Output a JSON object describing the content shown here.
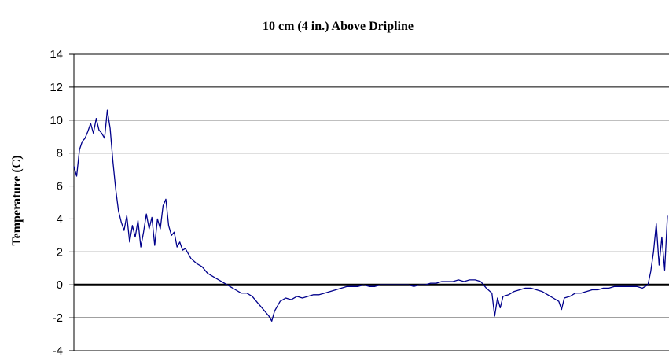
{
  "chart_data": {
    "type": "line",
    "title": "10 cm (4 in.) Above Dripline",
    "xlabel": "",
    "ylabel": "Temperature (C)",
    "ylim": [
      -4,
      14
    ],
    "yticks": [
      14,
      12,
      10,
      8,
      6,
      4,
      2,
      0,
      -2,
      -4
    ],
    "grid": true,
    "legend": "none",
    "line_color": "#00008b",
    "series": [
      {
        "values": [
          [
            0,
            7.2
          ],
          [
            0.5,
            6.6
          ],
          [
            1,
            8.2
          ],
          [
            1.5,
            8.7
          ],
          [
            2,
            8.9
          ],
          [
            2.5,
            9.3
          ],
          [
            3,
            9.8
          ],
          [
            3.5,
            9.2
          ],
          [
            4,
            10.1
          ],
          [
            4.5,
            9.4
          ],
          [
            5,
            9.2
          ],
          [
            5.5,
            8.9
          ],
          [
            6,
            10.6
          ],
          [
            6.5,
            9.5
          ],
          [
            7,
            7.5
          ],
          [
            7.5,
            5.8
          ],
          [
            8,
            4.5
          ],
          [
            8.5,
            3.8
          ],
          [
            9,
            3.3
          ],
          [
            9.5,
            4.2
          ],
          [
            10,
            2.6
          ],
          [
            10.5,
            3.6
          ],
          [
            11,
            2.9
          ],
          [
            11.5,
            3.9
          ],
          [
            12,
            2.3
          ],
          [
            12.5,
            3.2
          ],
          [
            13,
            4.3
          ],
          [
            13.5,
            3.4
          ],
          [
            14,
            4.1
          ],
          [
            14.5,
            2.4
          ],
          [
            15,
            4.0
          ],
          [
            15.5,
            3.4
          ],
          [
            16,
            4.8
          ],
          [
            16.5,
            5.2
          ],
          [
            17,
            3.6
          ],
          [
            17.5,
            3.0
          ],
          [
            18,
            3.2
          ],
          [
            18.5,
            2.3
          ],
          [
            19,
            2.6
          ],
          [
            19.5,
            2.1
          ],
          [
            20,
            2.2
          ],
          [
            21,
            1.6
          ],
          [
            22,
            1.3
          ],
          [
            23,
            1.1
          ],
          [
            24,
            0.7
          ],
          [
            25,
            0.5
          ],
          [
            26,
            0.3
          ],
          [
            27,
            0.1
          ],
          [
            28,
            -0.1
          ],
          [
            29,
            -0.3
          ],
          [
            30,
            -0.5
          ],
          [
            31,
            -0.5
          ],
          [
            32,
            -0.7
          ],
          [
            33,
            -1.1
          ],
          [
            34,
            -1.5
          ],
          [
            35,
            -1.9
          ],
          [
            35.5,
            -2.2
          ],
          [
            36,
            -1.6
          ],
          [
            37,
            -1.0
          ],
          [
            38,
            -0.8
          ],
          [
            39,
            -0.9
          ],
          [
            40,
            -0.7
          ],
          [
            41,
            -0.8
          ],
          [
            42,
            -0.7
          ],
          [
            43,
            -0.6
          ],
          [
            44,
            -0.6
          ],
          [
            45,
            -0.5
          ],
          [
            46,
            -0.4
          ],
          [
            47,
            -0.3
          ],
          [
            48,
            -0.2
          ],
          [
            49,
            -0.1
          ],
          [
            50,
            -0.1
          ],
          [
            51,
            -0.1
          ],
          [
            52,
            0.0
          ],
          [
            53,
            -0.1
          ],
          [
            54,
            -0.1
          ],
          [
            55,
            0.0
          ],
          [
            56,
            0.0
          ],
          [
            57,
            0.0
          ],
          [
            58,
            0.0
          ],
          [
            59,
            0.0
          ],
          [
            60,
            0.0
          ],
          [
            61,
            -0.1
          ],
          [
            62,
            0.0
          ],
          [
            63,
            0.0
          ],
          [
            64,
            0.1
          ],
          [
            65,
            0.1
          ],
          [
            66,
            0.2
          ],
          [
            67,
            0.2
          ],
          [
            68,
            0.2
          ],
          [
            69,
            0.3
          ],
          [
            70,
            0.2
          ],
          [
            71,
            0.3
          ],
          [
            72,
            0.3
          ],
          [
            73,
            0.2
          ],
          [
            74,
            -0.2
          ],
          [
            75,
            -0.5
          ],
          [
            75.5,
            -1.9
          ],
          [
            76,
            -0.8
          ],
          [
            76.5,
            -1.4
          ],
          [
            77,
            -0.7
          ],
          [
            78,
            -0.6
          ],
          [
            79,
            -0.4
          ],
          [
            80,
            -0.3
          ],
          [
            81,
            -0.2
          ],
          [
            82,
            -0.2
          ],
          [
            83,
            -0.3
          ],
          [
            84,
            -0.4
          ],
          [
            85,
            -0.6
          ],
          [
            86,
            -0.8
          ],
          [
            87,
            -1.0
          ],
          [
            87.5,
            -1.5
          ],
          [
            88,
            -0.8
          ],
          [
            89,
            -0.7
          ],
          [
            90,
            -0.5
          ],
          [
            91,
            -0.5
          ],
          [
            92,
            -0.4
          ],
          [
            93,
            -0.3
          ],
          [
            94,
            -0.3
          ],
          [
            95,
            -0.2
          ],
          [
            96,
            -0.2
          ],
          [
            97,
            -0.1
          ],
          [
            98,
            -0.1
          ],
          [
            99,
            -0.1
          ],
          [
            100,
            -0.1
          ],
          [
            101,
            -0.1
          ],
          [
            102,
            -0.2
          ],
          [
            103,
            0.0
          ],
          [
            103.5,
            0.8
          ],
          [
            104,
            2.0
          ],
          [
            104.5,
            3.7
          ],
          [
            105,
            1.2
          ],
          [
            105.5,
            2.9
          ],
          [
            106,
            0.9
          ],
          [
            106.5,
            4.2
          ]
        ]
      }
    ]
  }
}
